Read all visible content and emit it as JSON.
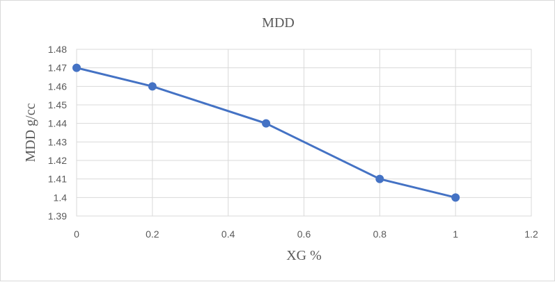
{
  "chart_data": {
    "type": "scatter",
    "title": "MDD",
    "xlabel": "XG %",
    "ylabel": "MDD  g/cc",
    "xlim": [
      0,
      1.2
    ],
    "ylim": [
      1.39,
      1.48
    ],
    "x_ticks": [
      "0",
      "0.2",
      "0.4",
      "0.6",
      "0.8",
      "1",
      "1.2"
    ],
    "y_ticks": [
      "1.39",
      "1.4",
      "1.41",
      "1.42",
      "1.43",
      "1.44",
      "1.45",
      "1.46",
      "1.47",
      "1.48"
    ],
    "grid": "both",
    "series": [
      {
        "x": [
          0,
          0.2,
          0.5,
          0.8,
          1
        ],
        "y": [
          1.47,
          1.46,
          1.44,
          1.41,
          1.4
        ],
        "color": "#4472c4",
        "style": "line-with-markers"
      }
    ]
  }
}
